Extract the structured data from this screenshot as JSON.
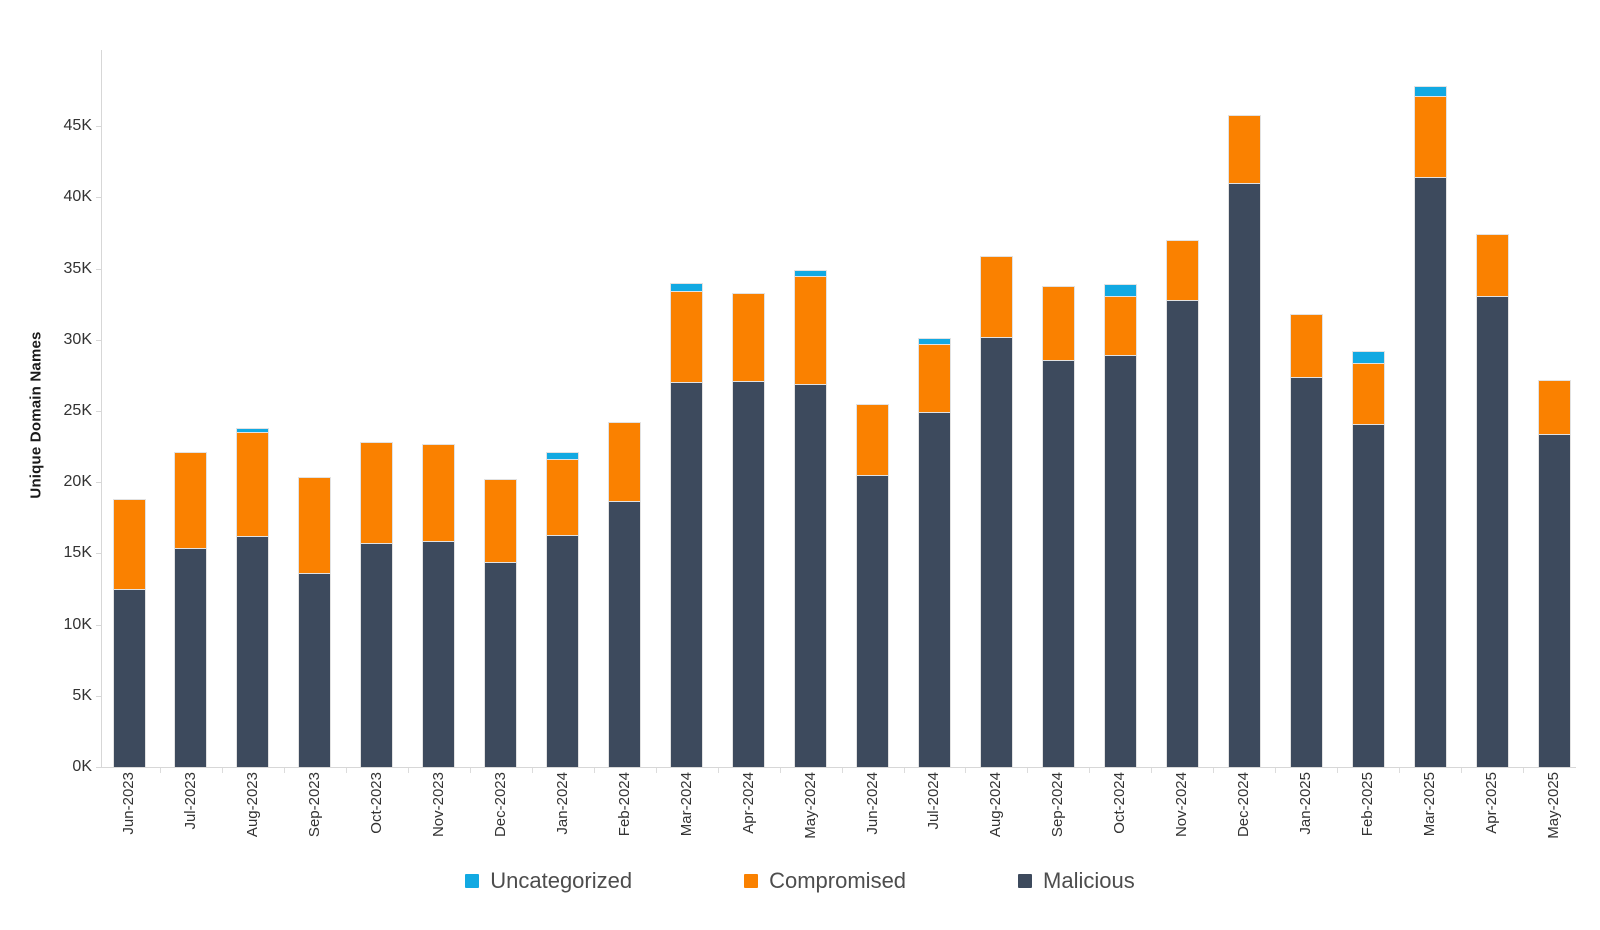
{
  "chart_data": {
    "type": "bar",
    "stacked": true,
    "title": "",
    "xlabel": "",
    "ylabel": "Unique Domain Names",
    "ylim": [
      0,
      50000
    ],
    "ytick_step": 5000,
    "ytick_labels": [
      "0K",
      "5K",
      "10K",
      "15K",
      "20K",
      "25K",
      "30K",
      "35K",
      "40K",
      "45K"
    ],
    "grid": false,
    "legend_position": "bottom-center",
    "categories": [
      "Jun-2023",
      "Jul-2023",
      "Aug-2023",
      "Sep-2023",
      "Oct-2023",
      "Nov-2023",
      "Dec-2023",
      "Jan-2024",
      "Feb-2024",
      "Mar-2024",
      "Apr-2024",
      "May-2024",
      "Jun-2024",
      "Jul-2024",
      "Aug-2024",
      "Sep-2024",
      "Oct-2024",
      "Nov-2024",
      "Dec-2024",
      "Jan-2025",
      "Feb-2025",
      "Mar-2025",
      "Apr-2025",
      "May-2025"
    ],
    "series": [
      {
        "name": "Malicious",
        "color": "#3d4a5d",
        "values": [
          12500,
          15400,
          16200,
          13600,
          15700,
          15900,
          14400,
          16300,
          18700,
          27000,
          27100,
          26900,
          20500,
          24900,
          30200,
          28600,
          28900,
          32800,
          41000,
          27400,
          24100,
          41400,
          33100,
          23400
        ]
      },
      {
        "name": "Compromised",
        "color": "#fa8100",
        "values": [
          6300,
          6700,
          7300,
          6800,
          7100,
          6800,
          5800,
          5300,
          5500,
          6400,
          6200,
          7600,
          5000,
          4800,
          5700,
          5200,
          4200,
          4200,
          4800,
          4400,
          4300,
          5700,
          4300,
          3800
        ]
      },
      {
        "name": "Uncategorized",
        "color": "#12a9e2",
        "values": [
          0,
          0,
          300,
          0,
          0,
          0,
          0,
          500,
          0,
          600,
          0,
          400,
          0,
          400,
          0,
          0,
          800,
          0,
          0,
          0,
          800,
          700,
          0,
          0
        ]
      }
    ]
  },
  "legend": {
    "items": [
      {
        "label": "Uncategorized",
        "color": "#12a9e2"
      },
      {
        "label": "Compromised",
        "color": "#fa8100"
      },
      {
        "label": "Malicious",
        "color": "#3d4a5d"
      }
    ]
  },
  "colors": {
    "axis_line": "#d7d7d7",
    "tick_text": "#333333",
    "legend_text": "#4d4d4d",
    "background": "#ffffff"
  }
}
